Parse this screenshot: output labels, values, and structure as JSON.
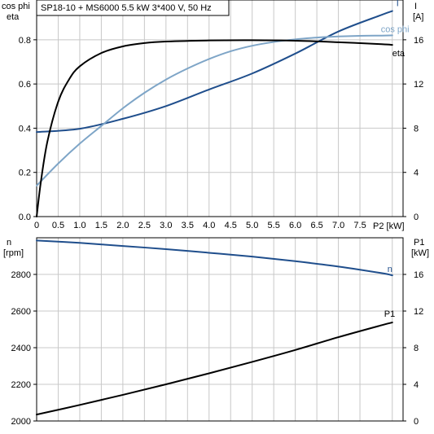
{
  "title": "SP18-10 + MS6000   5.5 kW   3*400 V, 50 Hz",
  "colors": {
    "I": "#1f4e8c",
    "cosphi": "#7ea5c7",
    "eta": "#000000",
    "n": "#1f4e8c",
    "P1": "#000000",
    "grid": "#c8c8c8"
  },
  "chart_data": [
    {
      "type": "line",
      "x_tick_labels": [
        "0",
        "0.5",
        "1.0",
        "1.5",
        "2.0",
        "2.5",
        "3.0",
        "3.5",
        "4.0",
        "4.5",
        "5.0",
        "5.5",
        "6.0",
        "6.5",
        "7.0",
        "7.5"
      ],
      "x_ticks": [
        0,
        0.5,
        1.0,
        1.5,
        2.0,
        2.5,
        3.0,
        3.5,
        4.0,
        4.5,
        5.0,
        5.5,
        6.0,
        6.5,
        7.0,
        7.5
      ],
      "xlabel": "P2 [kW]",
      "xlim": [
        0,
        8.5
      ],
      "left_axis": {
        "label_line1": "cos phi",
        "label_line2": "eta",
        "lim": [
          0,
          0.98
        ],
        "ticks": [
          0,
          0.2,
          0.4,
          0.6,
          0.8
        ],
        "tick_labels": [
          "0.0",
          "0.2",
          "0.4",
          "0.6",
          "0.8"
        ]
      },
      "right_axis": {
        "label_line1": "I",
        "label_line2": "[A]",
        "lim": [
          0,
          19.6
        ],
        "ticks": [
          0,
          4,
          8,
          12,
          16
        ],
        "tick_labels": [
          "0",
          "4",
          "8",
          "12",
          "16"
        ]
      },
      "series": [
        {
          "name": "I",
          "axis": "right",
          "color_key": "I",
          "x": [
            0,
            1,
            2,
            3,
            4,
            5,
            6,
            7,
            8,
            8.25
          ],
          "y": [
            7.65,
            7.95,
            8.85,
            10.0,
            11.5,
            12.95,
            14.75,
            16.75,
            18.25,
            18.6
          ]
        },
        {
          "name": "cos phi",
          "axis": "left",
          "color_key": "cosphi",
          "x": [
            0,
            0.5,
            1,
            1.5,
            2,
            2.5,
            3,
            3.5,
            4,
            4.5,
            5,
            5.5,
            6,
            6.5,
            7,
            7.5,
            8,
            8.25
          ],
          "y": [
            0.14,
            0.24,
            0.33,
            0.41,
            0.49,
            0.56,
            0.62,
            0.67,
            0.713,
            0.748,
            0.773,
            0.79,
            0.802,
            0.81,
            0.815,
            0.818,
            0.819,
            0.82
          ]
        },
        {
          "name": "eta",
          "axis": "left",
          "color_key": "eta",
          "x": [
            0,
            0.1,
            0.25,
            0.5,
            0.75,
            1,
            1.5,
            2,
            2.5,
            3,
            4,
            5,
            6,
            7,
            8,
            8.25
          ],
          "y": [
            0.0,
            0.16,
            0.34,
            0.52,
            0.62,
            0.68,
            0.74,
            0.77,
            0.785,
            0.792,
            0.797,
            0.798,
            0.796,
            0.789,
            0.78,
            0.777
          ]
        }
      ]
    },
    {
      "type": "line",
      "xlim": [
        0,
        8.5
      ],
      "x_ticks": [
        0,
        0.5,
        1.0,
        1.5,
        2.0,
        2.5,
        3.0,
        3.5,
        4.0,
        4.5,
        5.0,
        5.5,
        6.0,
        6.5,
        7.0,
        7.5
      ],
      "left_axis": {
        "label_line1": "n",
        "label_line2": "[rpm]",
        "lim": [
          2000,
          3000
        ],
        "ticks": [
          2000,
          2200,
          2400,
          2600,
          2800
        ],
        "tick_labels": [
          "2000",
          "2200",
          "2400",
          "2600",
          "2800"
        ]
      },
      "right_axis": {
        "label_line1": "P1",
        "label_line2": "[kW]",
        "lim": [
          0,
          20
        ],
        "ticks": [
          0,
          4,
          8,
          12,
          16
        ],
        "tick_labels": [
          "0",
          "4",
          "8",
          "12",
          "16"
        ]
      },
      "series": [
        {
          "name": "n",
          "axis": "left",
          "color_key": "n",
          "x": [
            0,
            1,
            2,
            3,
            4,
            5,
            6,
            7,
            8,
            8.25
          ],
          "y": [
            2985,
            2972,
            2955,
            2938,
            2918,
            2897,
            2872,
            2843,
            2807,
            2795
          ]
        },
        {
          "name": "P1",
          "axis": "right",
          "color_key": "P1",
          "x": [
            0,
            1,
            2,
            3,
            4,
            5,
            6,
            7,
            8,
            8.25
          ],
          "y": [
            0.7,
            1.75,
            2.85,
            4.0,
            5.2,
            6.45,
            7.75,
            9.15,
            10.45,
            10.75
          ]
        }
      ]
    }
  ]
}
